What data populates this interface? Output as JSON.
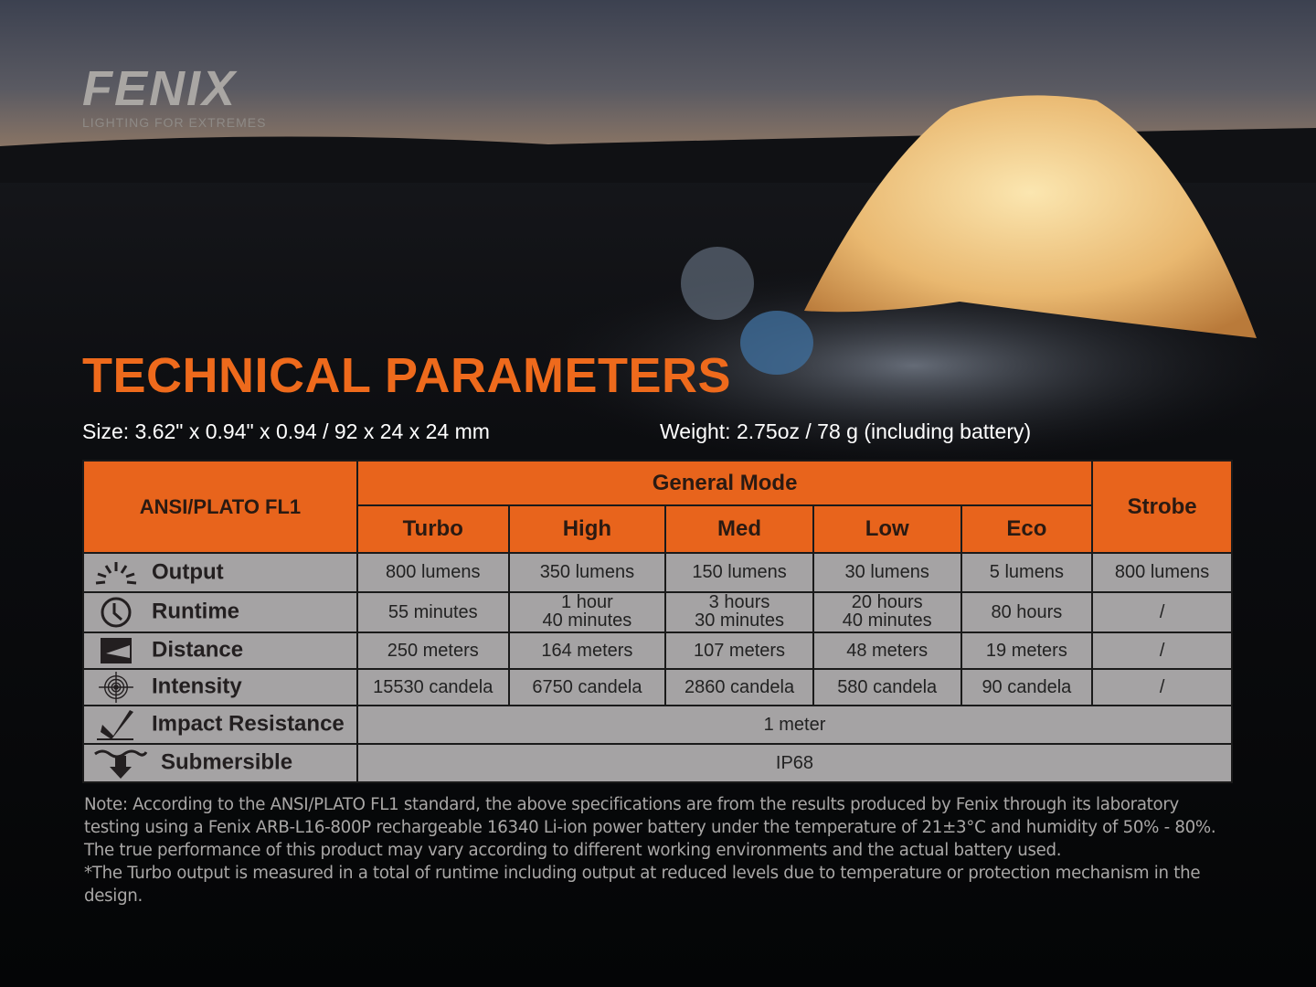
{
  "logo": {
    "brand": "FENIX",
    "tagline": "LIGHTING FOR EXTREMES"
  },
  "title": "TECHNICAL PARAMETERS",
  "size": "Size: 3.62\" x 0.94\" x 0.94 / 92 x 24 x 24 mm",
  "weight": "Weight: 2.75oz / 78 g (including battery)",
  "table": {
    "corner": "ANSI/PLATO FL1",
    "group": "General Mode",
    "strobe": "Strobe",
    "modes": [
      "Turbo",
      "High",
      "Med",
      "Low",
      "Eco"
    ],
    "rows": [
      {
        "label": "Output",
        "icon": "sunburst-icon",
        "values": [
          "800 lumens",
          "350 lumens",
          "150 lumens",
          "30 lumens",
          "5 lumens",
          "800 lumens"
        ]
      },
      {
        "label": "Runtime",
        "icon": "clock-icon",
        "values": [
          [
            "55 minutes"
          ],
          [
            "1 hour",
            "40 minutes"
          ],
          [
            "3 hours",
            "30 minutes"
          ],
          [
            "20 hours",
            "40 minutes"
          ],
          [
            "80 hours"
          ],
          [
            "/"
          ]
        ]
      },
      {
        "label": "Distance",
        "icon": "distance-icon",
        "values": [
          "250 meters",
          "164 meters",
          "107 meters",
          "48 meters",
          "19 meters",
          "/"
        ]
      },
      {
        "label": "Intensity",
        "icon": "target-icon",
        "values": [
          "15530 candela",
          "6750 candela",
          "2860 candela",
          "580 candela",
          "90 candela",
          "/"
        ]
      },
      {
        "label": "Impact Resistance",
        "icon": "impact-icon",
        "value": "1 meter"
      },
      {
        "label": "Submersible",
        "icon": "submersible-icon",
        "value": "IP68"
      }
    ]
  },
  "note": [
    "Note: According to the ANSI/PLATO FL1 standard, the above specifications are from the results produced by Fenix through its laboratory testing using a Fenix ARB-L16-800P rechargeable 16340 Li-ion power battery under the temperature of 21±3°C and humidity of 50% - 80%. The true performance of this product may vary according to different working environments and the actual battery used.",
    "*The Turbo output is measured in a total of runtime including output at reduced levels due to temperature or protection mechanism in the design."
  ]
}
